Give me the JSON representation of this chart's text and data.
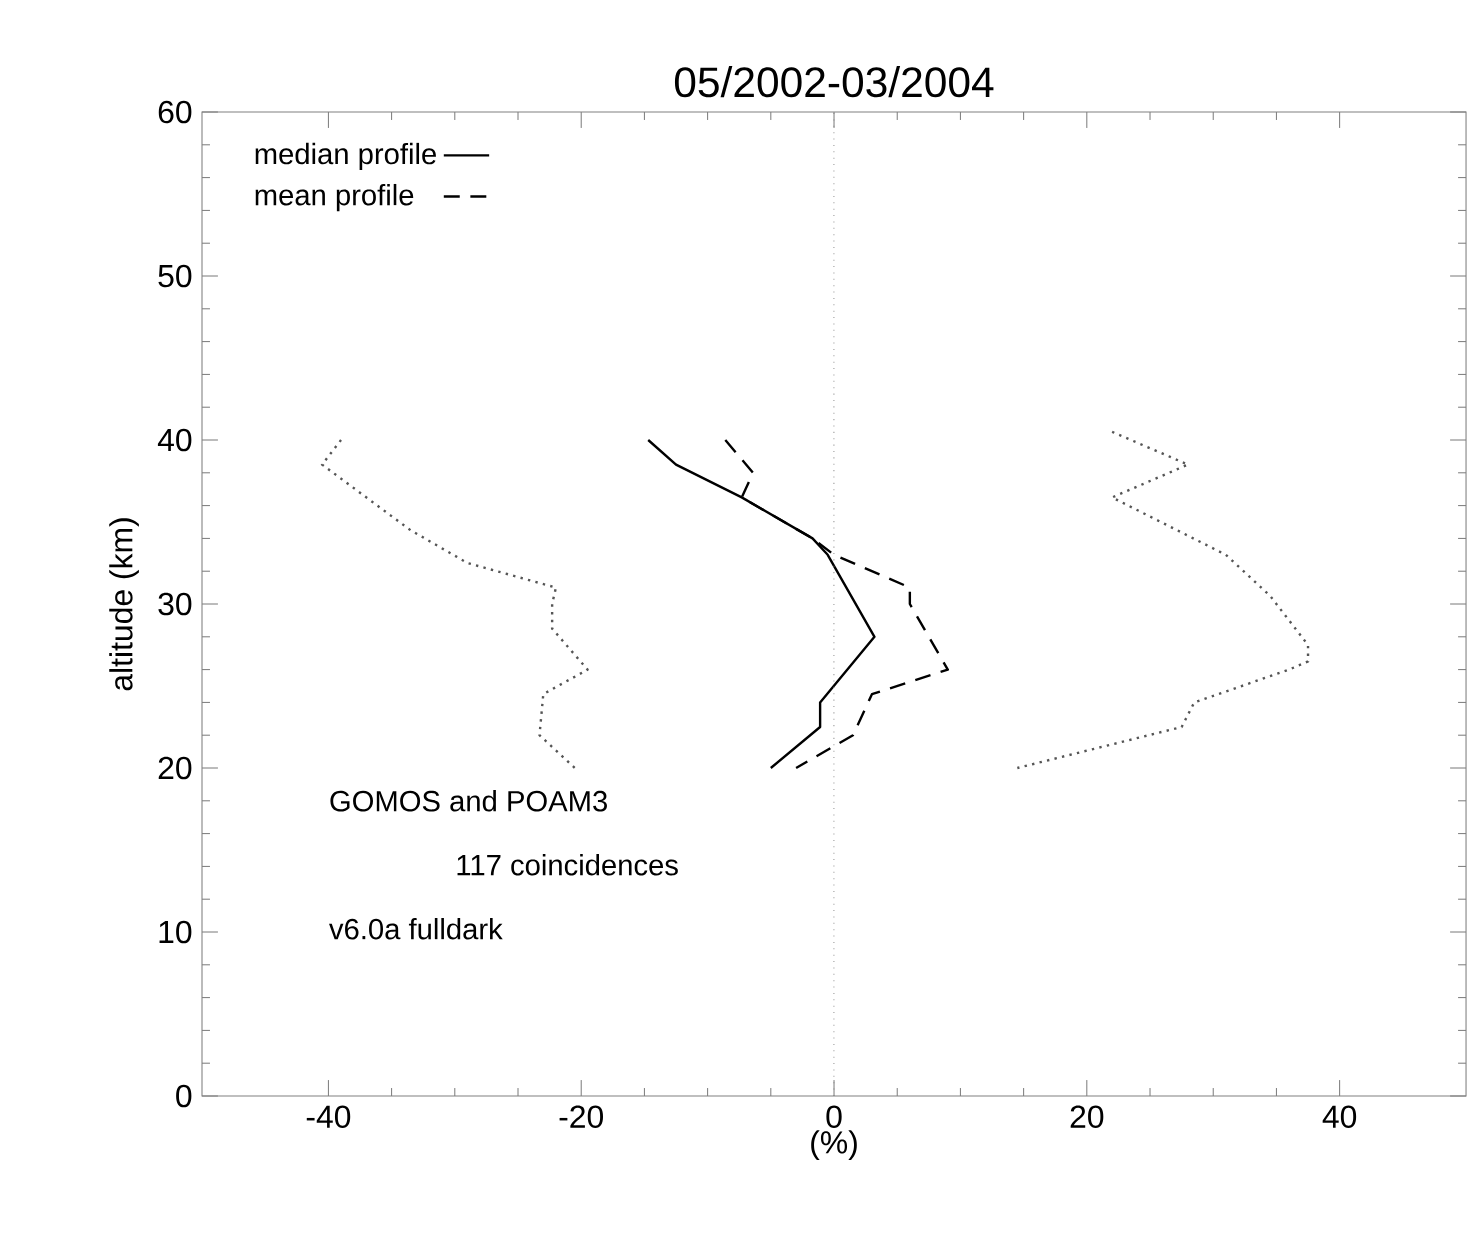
{
  "chart_data": {
    "type": "line",
    "title": "05/2002-03/2004",
    "xlabel": "(%)",
    "ylabel": "altitude (km)",
    "xlim": [
      -50,
      50
    ],
    "ylim": [
      0,
      60
    ],
    "xticks": [
      -40,
      -20,
      0,
      20,
      40
    ],
    "yticks": [
      0,
      10,
      20,
      30,
      40,
      50,
      60
    ],
    "legend": "top left",
    "marker": "none",
    "grid": false,
    "series": [
      {
        "name": "median profile",
        "color": "#000000",
        "line_style": "solid",
        "x": [
          -14.7,
          -12.5,
          -7.3,
          -1.7,
          -0.5,
          3.2,
          -1.1,
          -1.1,
          -5
        ],
        "values": [
          40,
          38.5,
          36.5,
          34,
          33,
          28,
          24,
          22.5,
          20
        ]
      },
      {
        "name": "mean profile",
        "color": "#000000",
        "line_style": "dashed",
        "x": [
          -8.6,
          -6.4,
          -7.3,
          -1.7,
          0,
          6,
          6,
          9,
          3,
          1.5,
          -3
        ],
        "values": [
          40,
          38,
          36.5,
          34,
          33,
          31,
          30,
          26,
          24.5,
          22,
          20
        ]
      },
      {
        "color": "#555555",
        "line_style": "dotted",
        "x": [
          -39,
          -40.5,
          -33.5,
          -29,
          -22,
          -22.3,
          -22.3,
          -19.5,
          -23,
          -23.3,
          -20.5
        ],
        "values": [
          40,
          38.5,
          34.5,
          32.5,
          31,
          30,
          28.5,
          26,
          24.5,
          22,
          20
        ]
      },
      {
        "color": "#555555",
        "line_style": "dotted",
        "x": [
          22,
          28,
          22,
          31,
          34.5,
          37.5,
          37.5,
          36,
          28.5,
          27.5,
          14.5
        ],
        "values": [
          40.5,
          38.5,
          36.5,
          33,
          30.5,
          27.5,
          26.5,
          26,
          24,
          22.5,
          20
        ]
      }
    ],
    "ref_lines": [
      {
        "axis": "x",
        "value": 0,
        "color": "#808080",
        "line_style": "dotted"
      }
    ],
    "annotations": [
      "GOMOS and POAM3",
      "117 coincidences",
      "v6.0a fulldark"
    ]
  }
}
